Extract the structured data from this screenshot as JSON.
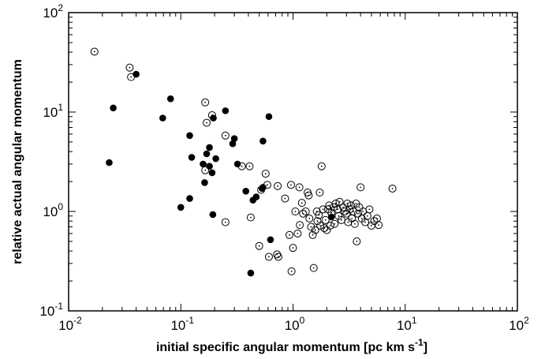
{
  "chart_data": {
    "type": "scatter",
    "title": "",
    "xlabel": "initial specific angular momentum [pc km s",
    "xlabel_sup": "-1",
    "xlabel_end": "]",
    "ylabel": "relative actual angular momentum",
    "x_scale": "log",
    "y_scale": "log",
    "xlim": [
      0.01,
      100
    ],
    "ylim": [
      0.1,
      100
    ],
    "grid": false,
    "legend": "none",
    "x_ticks": [
      {
        "base": "10",
        "exp": "-2"
      },
      {
        "base": "10",
        "exp": "-1"
      },
      {
        "base": "10",
        "exp": "0"
      },
      {
        "base": "10",
        "exp": "1"
      },
      {
        "base": "10",
        "exp": "2"
      }
    ],
    "y_ticks": [
      {
        "base": "10",
        "exp": "-1"
      },
      {
        "base": "10",
        "exp": "0"
      },
      {
        "base": "10",
        "exp": "1"
      },
      {
        "base": "10",
        "exp": "2"
      }
    ],
    "series": [
      {
        "marker": "filled-circle",
        "color": "#000000",
        "points": [
          [
            0.023,
            3.1
          ],
          [
            0.025,
            11.0
          ],
          [
            0.04,
            24.0
          ],
          [
            0.069,
            8.7
          ],
          [
            0.081,
            13.6
          ],
          [
            0.1,
            1.1
          ],
          [
            0.12,
            5.8
          ],
          [
            0.12,
            1.35
          ],
          [
            0.125,
            3.5
          ],
          [
            0.158,
            3.0
          ],
          [
            0.163,
            1.95
          ],
          [
            0.17,
            3.8
          ],
          [
            0.18,
            4.4
          ],
          [
            0.18,
            2.85
          ],
          [
            0.19,
            2.45
          ],
          [
            0.193,
            0.93
          ],
          [
            0.195,
            8.7
          ],
          [
            0.205,
            3.4
          ],
          [
            0.25,
            10.3
          ],
          [
            0.29,
            4.8
          ],
          [
            0.3,
            5.4
          ],
          [
            0.32,
            3.0
          ],
          [
            0.38,
            1.6
          ],
          [
            0.42,
            0.24
          ],
          [
            0.44,
            1.3
          ],
          [
            0.47,
            1.4
          ],
          [
            0.53,
            1.7
          ],
          [
            0.54,
            1.75
          ],
          [
            0.54,
            5.1
          ],
          [
            0.61,
            9.0
          ],
          [
            0.63,
            0.52
          ],
          [
            2.2,
            0.88
          ]
        ]
      },
      {
        "marker": "open-circle-dot",
        "color": "#000000",
        "points": [
          [
            0.017,
            40.5
          ],
          [
            0.035,
            28.0
          ],
          [
            0.036,
            22.5
          ],
          [
            0.165,
            12.5
          ],
          [
            0.17,
            7.8
          ],
          [
            0.19,
            9.3
          ],
          [
            0.165,
            2.6
          ],
          [
            0.25,
            5.8
          ],
          [
            0.25,
            0.78
          ],
          [
            0.35,
            2.85
          ],
          [
            0.41,
            2.85
          ],
          [
            0.42,
            0.87
          ],
          [
            0.5,
            0.45
          ],
          [
            0.52,
            1.65
          ],
          [
            0.57,
            2.4
          ],
          [
            0.59,
            1.85
          ],
          [
            0.61,
            0.35
          ],
          [
            0.74,
            0.35
          ],
          [
            0.72,
            0.37
          ],
          [
            0.73,
            1.8
          ],
          [
            0.85,
            1.35
          ],
          [
            0.93,
            0.58
          ],
          [
            0.96,
            1.85
          ],
          [
            0.97,
            0.25
          ],
          [
            1.0,
            0.43
          ],
          [
            1.05,
            1.0
          ],
          [
            1.1,
            0.6
          ],
          [
            1.14,
            1.75
          ],
          [
            1.15,
            0.73
          ],
          [
            1.2,
            1.22
          ],
          [
            1.23,
            0.95
          ],
          [
            1.3,
            1.0
          ],
          [
            1.35,
            1.55
          ],
          [
            1.38,
            1.45
          ],
          [
            1.4,
            0.85
          ],
          [
            1.45,
            0.7
          ],
          [
            1.5,
            0.58
          ],
          [
            1.53,
            0.27
          ],
          [
            1.58,
            0.65
          ],
          [
            1.63,
            1.0
          ],
          [
            1.65,
            0.8
          ],
          [
            1.7,
            0.92
          ],
          [
            1.73,
            1.55
          ],
          [
            1.75,
            0.72
          ],
          [
            1.8,
            2.85
          ],
          [
            1.85,
            1.05
          ],
          [
            1.9,
            0.68
          ],
          [
            1.95,
            0.82
          ],
          [
            2.0,
            0.65
          ],
          [
            2.05,
            1.05
          ],
          [
            2.1,
            1.15
          ],
          [
            2.15,
            0.72
          ],
          [
            2.2,
            0.97
          ],
          [
            2.3,
            1.1
          ],
          [
            2.35,
            0.75
          ],
          [
            2.4,
            1.2
          ],
          [
            2.5,
            1.05
          ],
          [
            2.55,
            0.9
          ],
          [
            2.6,
            1.25
          ],
          [
            2.7,
            0.82
          ],
          [
            2.8,
            1.1
          ],
          [
            2.9,
            1.0
          ],
          [
            3.0,
            0.95
          ],
          [
            3.05,
            1.2
          ],
          [
            3.1,
            0.78
          ],
          [
            3.2,
            1.05
          ],
          [
            3.3,
            1.15
          ],
          [
            3.35,
            0.85
          ],
          [
            3.45,
            1.0
          ],
          [
            3.55,
            0.75
          ],
          [
            3.65,
            1.2
          ],
          [
            3.7,
            0.5
          ],
          [
            3.8,
            0.95
          ],
          [
            3.9,
            1.1
          ],
          [
            4.0,
            1.75
          ],
          [
            4.1,
            0.85
          ],
          [
            4.2,
            1.0
          ],
          [
            4.4,
            0.78
          ],
          [
            4.6,
            0.9
          ],
          [
            4.8,
            1.05
          ],
          [
            5.0,
            0.72
          ],
          [
            5.3,
            0.8
          ],
          [
            5.6,
            0.85
          ],
          [
            5.8,
            0.73
          ],
          [
            7.7,
            1.7
          ]
        ]
      }
    ]
  }
}
